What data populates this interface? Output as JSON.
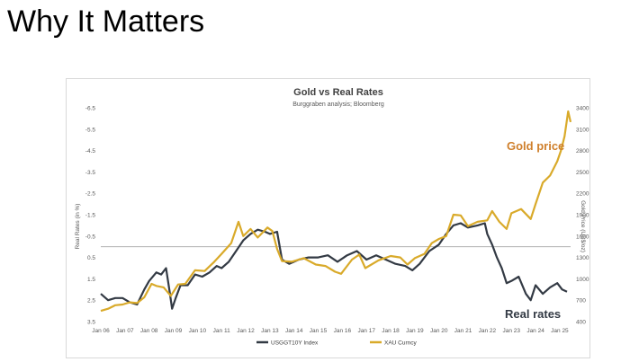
{
  "slide": {
    "title": "Why It Matters"
  },
  "colors": {
    "gold": "#d9aa2a",
    "rates": "#333a44",
    "gold_label": "#cf7f2b",
    "rates_label": "#333a44"
  },
  "chart_data": {
    "type": "line",
    "title": "Gold  vs Real Rates",
    "subtitle": "Burggraben analysis; Bloomberg",
    "ylabel_left": "Real Rates (in %)",
    "ylabel_right": "Gold Price (US$/oz)",
    "y_left_ticks": [
      "-6.5",
      "-5.5",
      "-4.5",
      "-3.5",
      "-2.5",
      "-1.5",
      "-0.5",
      "0.5",
      "1.5",
      "2.5",
      "3.5"
    ],
    "y_right_ticks": [
      "3400",
      "3100",
      "2800",
      "2500",
      "2200",
      "1900",
      "1600",
      "1300",
      "1000",
      "700",
      "400"
    ],
    "ylim_left": [
      -6.5,
      3.5
    ],
    "left_axis_inverted": true,
    "ylim_right": [
      400,
      3400
    ],
    "x_ticks": [
      "Jan 06",
      "Jan 07",
      "Jan 08",
      "Jan 09",
      "Jan 10",
      "Jan 11",
      "Jan 12",
      "Jan 13",
      "Jan 14",
      "Jan 15",
      "Jan 16",
      "Jan 17",
      "Jan 18",
      "Jan 19",
      "Jan 20",
      "Jan 21",
      "Jan 22",
      "Jan 23",
      "Jan 24",
      "Jan 25"
    ],
    "xlim": [
      2006.0,
      2025.45
    ],
    "series": [
      {
        "name": "USGGT10Y Index",
        "axis": "left",
        "x": [
          2006.0,
          2006.3,
          2006.6,
          2006.9,
          2007.2,
          2007.5,
          2007.8,
          2008.0,
          2008.3,
          2008.5,
          2008.7,
          2008.85,
          2008.95,
          2009.1,
          2009.3,
          2009.6,
          2009.9,
          2010.2,
          2010.5,
          2010.8,
          2011.0,
          2011.3,
          2011.6,
          2011.9,
          2012.2,
          2012.5,
          2012.8,
          2013.0,
          2013.3,
          2013.5,
          2013.8,
          2014.2,
          2014.6,
          2015.0,
          2015.4,
          2015.8,
          2016.2,
          2016.6,
          2017.0,
          2017.4,
          2017.8,
          2018.2,
          2018.6,
          2018.9,
          2019.2,
          2019.6,
          2020.0,
          2020.3,
          2020.6,
          2020.9,
          2021.2,
          2021.6,
          2021.9,
          2022.0,
          2022.2,
          2022.4,
          2022.6,
          2022.8,
          2023.0,
          2023.3,
          2023.6,
          2023.8,
          2024.0,
          2024.3,
          2024.6,
          2024.9,
          2025.1,
          2025.3
        ],
        "y": [
          2.2,
          2.5,
          2.4,
          2.4,
          2.6,
          2.7,
          2.0,
          1.6,
          1.2,
          1.3,
          1.0,
          2.1,
          2.9,
          2.4,
          1.8,
          1.8,
          1.3,
          1.4,
          1.2,
          0.9,
          1.0,
          0.7,
          0.2,
          -0.3,
          -0.6,
          -0.8,
          -0.7,
          -0.6,
          -0.7,
          0.6,
          0.8,
          0.6,
          0.5,
          0.5,
          0.4,
          0.7,
          0.4,
          0.2,
          0.6,
          0.4,
          0.6,
          0.8,
          0.9,
          1.1,
          0.8,
          0.2,
          -0.1,
          -0.6,
          -1.0,
          -1.1,
          -0.9,
          -1.0,
          -1.1,
          -0.6,
          -0.1,
          0.5,
          1.0,
          1.7,
          1.6,
          1.4,
          2.2,
          2.5,
          1.8,
          2.2,
          1.9,
          1.7,
          2.0,
          2.1
        ]
      },
      {
        "name": "XAU Curncy",
        "axis": "right",
        "x": [
          2006.0,
          2006.3,
          2006.6,
          2006.9,
          2007.2,
          2007.5,
          2007.8,
          2008.1,
          2008.3,
          2008.6,
          2008.9,
          2009.2,
          2009.5,
          2009.9,
          2010.3,
          2010.7,
          2011.0,
          2011.4,
          2011.7,
          2011.9,
          2012.2,
          2012.5,
          2012.9,
          2013.1,
          2013.3,
          2013.5,
          2013.9,
          2014.4,
          2014.9,
          2015.3,
          2015.7,
          2015.95,
          2016.4,
          2016.7,
          2016.95,
          2017.5,
          2018.0,
          2018.4,
          2018.7,
          2019.0,
          2019.4,
          2019.7,
          2020.0,
          2020.3,
          2020.6,
          2020.9,
          2021.2,
          2021.6,
          2022.0,
          2022.2,
          2022.5,
          2022.8,
          2023.0,
          2023.4,
          2023.8,
          2024.0,
          2024.3,
          2024.6,
          2024.9,
          2025.05,
          2025.2,
          2025.35,
          2025.45
        ],
        "y": [
          550,
          580,
          630,
          640,
          670,
          660,
          740,
          930,
          900,
          880,
          760,
          920,
          930,
          1120,
          1110,
          1240,
          1350,
          1500,
          1800,
          1600,
          1700,
          1580,
          1720,
          1670,
          1420,
          1250,
          1240,
          1290,
          1200,
          1180,
          1100,
          1070,
          1270,
          1340,
          1150,
          1260,
          1320,
          1300,
          1200,
          1290,
          1350,
          1500,
          1560,
          1600,
          1900,
          1890,
          1740,
          1800,
          1820,
          1950,
          1800,
          1700,
          1920,
          1980,
          1840,
          2050,
          2350,
          2450,
          2650,
          2800,
          3000,
          3350,
          3200
        ]
      }
    ],
    "legend_position": "bottom",
    "reference_line": 0,
    "annotations": [
      {
        "text": "Gold price",
        "series": "XAU Curncy"
      },
      {
        "text": "Real rates",
        "series": "USGGT10Y Index"
      }
    ]
  }
}
